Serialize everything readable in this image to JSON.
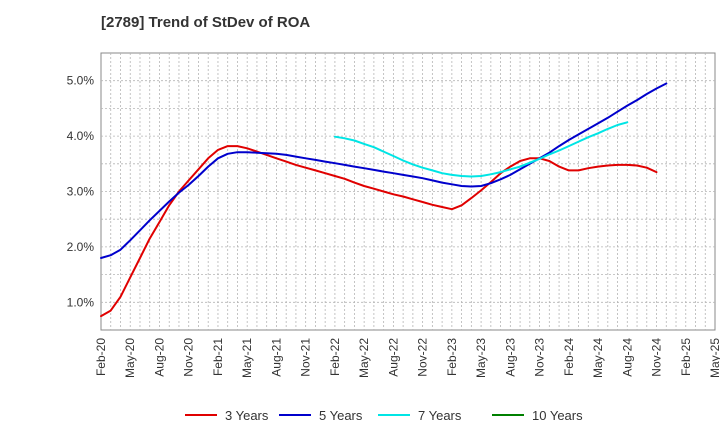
{
  "chart_data": {
    "type": "line",
    "title": "[2789]  Trend of StDev of ROA",
    "x_labels": [
      "Feb-20",
      "May-20",
      "Aug-20",
      "Nov-20",
      "Feb-21",
      "May-21",
      "Aug-21",
      "Nov-21",
      "Feb-22",
      "May-22",
      "Aug-22",
      "Nov-22",
      "Feb-23",
      "May-23",
      "Aug-23",
      "Nov-23",
      "Feb-24",
      "May-24",
      "Aug-24",
      "Nov-24",
      "Feb-25",
      "May-25"
    ],
    "y_ticks": [
      "1.0%",
      "2.0%",
      "3.0%",
      "4.0%",
      "5.0%"
    ],
    "ylim": [
      0.5,
      5.5
    ],
    "grid": true,
    "legend_position": "bottom",
    "series": [
      {
        "name": "3 Years",
        "color": "#e00000",
        "values": [
          0.75,
          0.85,
          1.1,
          1.45,
          1.8,
          2.15,
          2.45,
          2.75,
          3.0,
          3.2,
          3.4,
          3.6,
          3.75,
          3.82,
          3.82,
          3.78,
          3.72,
          3.66,
          3.6,
          3.54,
          3.48,
          3.43,
          3.38,
          3.33,
          3.28,
          3.23,
          3.16,
          3.1,
          3.05,
          3.0,
          2.95,
          2.91,
          2.86,
          2.81,
          2.76,
          2.72,
          2.68,
          2.75,
          2.88,
          3.02,
          3.17,
          3.33,
          3.45,
          3.55,
          3.6,
          3.6,
          3.55,
          3.45,
          3.38,
          3.38,
          3.42,
          3.45,
          3.47,
          3.48,
          3.48,
          3.47,
          3.43,
          3.35
        ]
      },
      {
        "name": "5 Years",
        "color": "#0000cc",
        "values": [
          1.8,
          1.85,
          1.95,
          2.12,
          2.3,
          2.48,
          2.65,
          2.82,
          2.98,
          3.12,
          3.28,
          3.45,
          3.6,
          3.68,
          3.71,
          3.71,
          3.7,
          3.69,
          3.68,
          3.66,
          3.63,
          3.6,
          3.57,
          3.54,
          3.51,
          3.48,
          3.45,
          3.42,
          3.39,
          3.36,
          3.33,
          3.3,
          3.27,
          3.24,
          3.2,
          3.16,
          3.13,
          3.1,
          3.09,
          3.1,
          3.15,
          3.22,
          3.3,
          3.4,
          3.5,
          3.6,
          3.7,
          3.82,
          3.93,
          4.03,
          4.13,
          4.23,
          4.33,
          4.44,
          4.55,
          4.65,
          4.76,
          4.86,
          4.95
        ]
      },
      {
        "name": "7 Years",
        "color": "#00e5e5",
        "start_index": 24,
        "values": [
          3.99,
          3.96,
          3.92,
          3.86,
          3.8,
          3.72,
          3.64,
          3.56,
          3.49,
          3.43,
          3.38,
          3.33,
          3.3,
          3.28,
          3.27,
          3.28,
          3.31,
          3.35,
          3.4,
          3.45,
          3.52,
          3.59,
          3.67,
          3.74,
          3.82,
          3.9,
          3.98,
          4.05,
          4.13,
          4.2,
          4.25
        ]
      },
      {
        "name": "10 Years",
        "color": "#008000",
        "values": []
      }
    ]
  }
}
